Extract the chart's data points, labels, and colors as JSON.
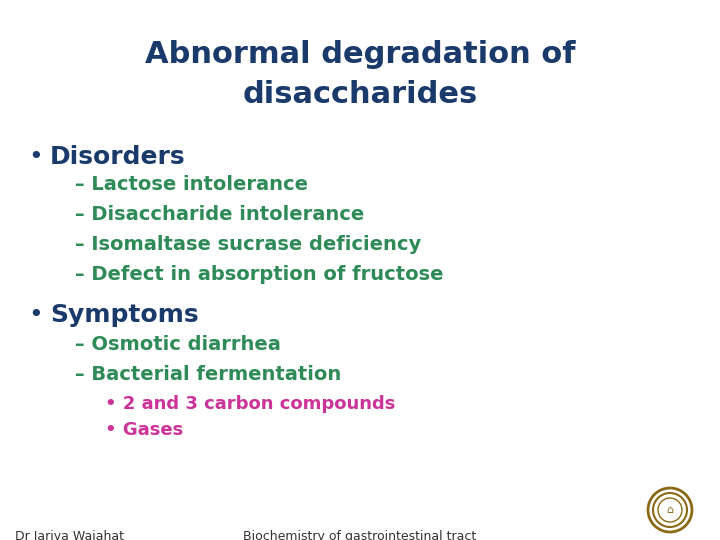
{
  "title_line1": "Abnormal degradation of",
  "title_line2": "disaccharides",
  "title_color": "#1a3a6b",
  "title_fontsize": 22,
  "bg_color": "#ffffff",
  "bullet1_text": "Disorders",
  "bullet1_color": "#1a3a6b",
  "bullet1_fontsize": 18,
  "sub1_items": [
    "– Lactose intolerance",
    "– Disaccharide intolerance",
    "– Isomaltase sucrase deficiency",
    "– Defect in absorption of fructose"
  ],
  "sub1_color": "#2e8b57",
  "sub1_fontsize": 14,
  "bullet2_text": "Symptoms",
  "bullet2_color": "#1a3a6b",
  "bullet2_fontsize": 18,
  "sub2_items": [
    "– Osmotic diarrhea",
    "– Bacterial fermentation"
  ],
  "sub2_color": "#2e8b57",
  "sub2_fontsize": 14,
  "sub3_items": [
    "• 2 and 3 carbon compounds",
    "• Gases"
  ],
  "sub3_color": "#cc3399",
  "sub3_fontsize": 13,
  "footer_left": "Dr Jariya Wajahat",
  "footer_center": "Biochemistry of gastrointestinal tract",
  "footer_color": "#333333",
  "footer_fontsize": 9
}
